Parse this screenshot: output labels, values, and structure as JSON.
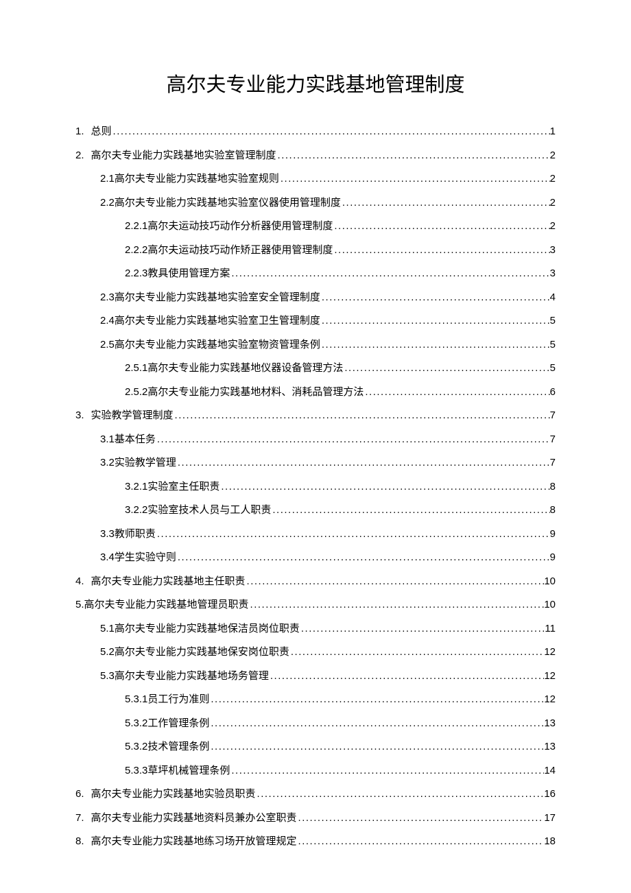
{
  "title": "高尔夫专业能力实践基地管理制度",
  "dots": "...........................................................................................................................................................",
  "toc": [
    {
      "level": 1,
      "num": "1.",
      "label": "总则",
      "page": "1",
      "gap": true
    },
    {
      "level": 1,
      "num": "2.",
      "label": "高尔夫专业能力实践基地实验室管理制度",
      "page": "2",
      "gap": true
    },
    {
      "level": 2,
      "num": "2.1",
      "label": " 高尔夫专业能力实践基地实验室规则",
      "page": "2",
      "gap": false
    },
    {
      "level": 2,
      "num": "2.2",
      "label": " 高尔夫专业能力实践基地实验室仪器使用管理制度",
      "page": "2",
      "gap": false
    },
    {
      "level": 3,
      "num": "2.2.1",
      "label": " 高尔夫运动技巧动作分析器使用管理制度",
      "page": "2",
      "gap": false
    },
    {
      "level": 3,
      "num": "2.2.2",
      "label": " 高尔夫运动技巧动作矫正器使用管理制度",
      "page": "3",
      "gap": false
    },
    {
      "level": 3,
      "num": "2.2.3",
      "label": " 教具使用管理方案",
      "page": "3",
      "gap": false
    },
    {
      "level": 2,
      "num": "2.3",
      "label": " 高尔夫专业能力实践基地实验室安全管理制度",
      "page": "4",
      "gap": false
    },
    {
      "level": 2,
      "num": "2.4",
      "label": " 高尔夫专业能力实践基地实验室卫生管理制度",
      "page": "5",
      "gap": false
    },
    {
      "level": 2,
      "num": "2.5",
      "label": " 高尔夫专业能力实践基地实验室物资管理条例",
      "page": "5",
      "gap": false
    },
    {
      "level": 3,
      "num": "2.5.1",
      "label": " 高尔夫专业能力实践基地仪器设备管理方法",
      "page": "5",
      "gap": false
    },
    {
      "level": 3,
      "num": "2.5.2",
      "label": " 高尔夫专业能力实践基地材料、消耗品管理方法",
      "page": "6",
      "gap": false
    },
    {
      "level": 1,
      "num": "3.",
      "label": "实验教学管理制度",
      "page": "7",
      "gap": true
    },
    {
      "level": 2,
      "num": "3.1",
      "label": " 基本任务",
      "page": "7",
      "gap": false
    },
    {
      "level": 2,
      "num": "3.2",
      "label": " 实验教学管理",
      "page": "7",
      "gap": false
    },
    {
      "level": 3,
      "num": "3.2.1",
      "label": " 实验室主任职责",
      "page": "8",
      "gap": false
    },
    {
      "level": 3,
      "num": "3.2.2",
      "label": " 实验室技术人员与工人职责",
      "page": "8",
      "gap": false
    },
    {
      "level": 2,
      "num": "3.3",
      "label": " 教师职责",
      "page": "9",
      "gap": false
    },
    {
      "level": 2,
      "num": "3.4",
      "label": " 学生实验守则",
      "page": "9",
      "gap": false
    },
    {
      "level": 1,
      "num": "4.",
      "label": "高尔夫专业能力实践基地主任职责",
      "page": "10",
      "gap": true
    },
    {
      "level": 1,
      "num": "5.",
      "label": "高尔夫专业能力实践基地管理员职责",
      "page": "10",
      "gap": false
    },
    {
      "level": 2,
      "num": "5.1",
      "label": " 高尔夫专业能力实践基地保洁员岗位职责",
      "page": "11",
      "gap": false
    },
    {
      "level": 2,
      "num": "5.2",
      "label": " 高尔夫专业能力实践基地保安岗位职责",
      "page": "12",
      "gap": false
    },
    {
      "level": 2,
      "num": "5.3",
      "label": " 高尔夫专业能力实践基地场务管理",
      "page": "12",
      "gap": false
    },
    {
      "level": 3,
      "num": "5.3.1",
      "label": " 员工行为准则",
      "page": "12",
      "gap": false
    },
    {
      "level": 3,
      "num": "5.3.2",
      "label": " 工作管理条例",
      "page": "13",
      "gap": false
    },
    {
      "level": 3,
      "num": "5.3.2",
      "label": " 技术管理条例",
      "page": "13",
      "gap": false
    },
    {
      "level": 3,
      "num": "5.3.3",
      "label": " 草坪机械管理条例",
      "page": "14",
      "gap": false
    },
    {
      "level": 1,
      "num": "6.",
      "label": "高尔夫专业能力实践基地实验员职责",
      "page": "16",
      "gap": true
    },
    {
      "level": 1,
      "num": "7.",
      "label": "高尔夫专业能力实践基地资料员兼办公室职责",
      "page": "17",
      "gap": true
    },
    {
      "level": 1,
      "num": "8.",
      "label": "高尔夫专业能力实践基地练习场开放管理规定",
      "page": "18",
      "gap": true
    }
  ]
}
